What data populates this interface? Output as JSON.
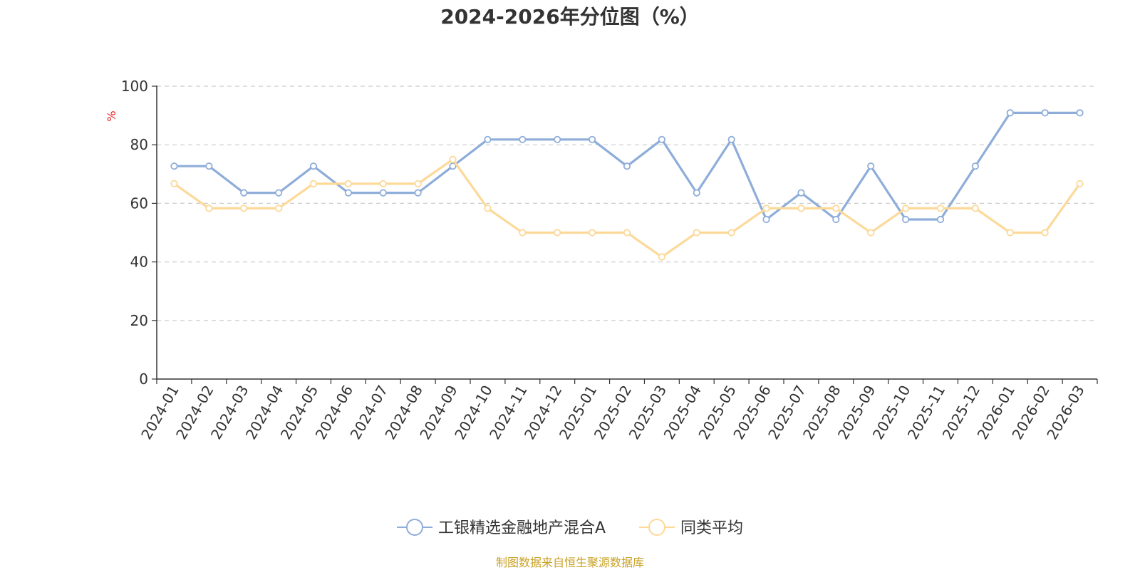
{
  "chart_data": {
    "type": "line",
    "title": "2024-2026年分位图（%）",
    "ylabel": "%",
    "ylim": [
      0,
      100
    ],
    "yticks": [
      0,
      20,
      40,
      60,
      80,
      100
    ],
    "grid": true,
    "legend_position": "bottom-center",
    "categories": [
      "2024-01",
      "2024-02",
      "2024-03",
      "2024-04",
      "2024-05",
      "2024-06",
      "2024-07",
      "2024-08",
      "2024-09",
      "2024-10",
      "2024-11",
      "2024-12",
      "2025-01",
      "2025-02",
      "2025-03",
      "2025-04",
      "2025-05",
      "2025-06",
      "2025-07",
      "2025-08",
      "2025-09",
      "2025-10",
      "2025-11",
      "2025-12",
      "2026-01",
      "2026-02",
      "2026-03"
    ],
    "series": [
      {
        "name": "工银精选金融地产混合A",
        "color": "#8eadd9",
        "values": [
          72.7,
          72.7,
          63.6,
          63.6,
          72.7,
          63.6,
          63.6,
          63.6,
          72.7,
          81.8,
          81.8,
          81.8,
          81.8,
          72.7,
          81.8,
          63.6,
          81.8,
          54.5,
          63.6,
          54.5,
          72.7,
          54.5,
          54.5,
          72.7,
          90.9,
          90.9,
          90.9
        ]
      },
      {
        "name": "同类平均",
        "color": "#fcd998",
        "values": [
          66.7,
          58.3,
          58.3,
          58.3,
          66.7,
          66.7,
          66.7,
          66.7,
          75.0,
          58.3,
          50.0,
          50.0,
          50.0,
          50.0,
          41.7,
          50.0,
          50.0,
          58.3,
          58.3,
          58.3,
          50.0,
          58.3,
          58.3,
          58.3,
          50.0,
          50.0,
          66.7
        ]
      }
    ]
  },
  "colors": {
    "y_unit": "#e81f1f",
    "source_text": "#c9a227",
    "grid": "#cccccc",
    "axis": "#333333"
  },
  "source": "制图数据来自恒生聚源数据库"
}
